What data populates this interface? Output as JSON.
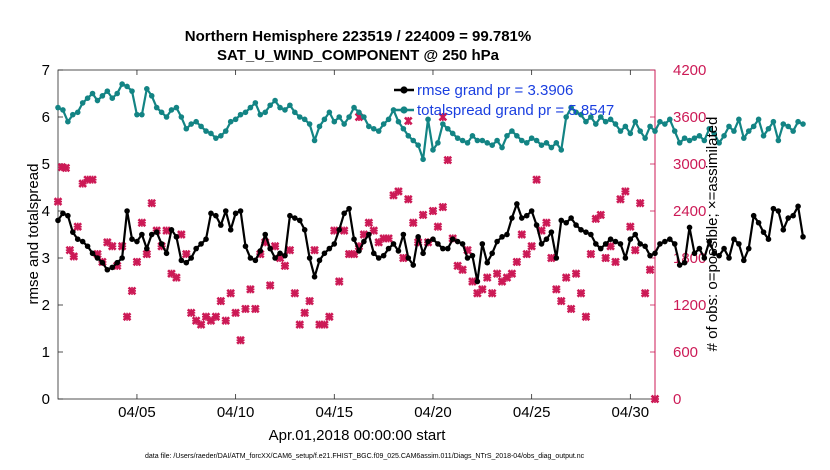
{
  "chart_data": {
    "type": "line",
    "title_line1": "Northern Hemisphere 223519 / 224009 = 99.781%",
    "title_line2": "SAT_U_WIND_COMPONENT @ 250 hPa",
    "xlabel": "Apr.01,2018 00:00:00 start",
    "ylabel_left": "rmse and totalspread",
    "ylabel_right": "# of obs: o=possible; ×=assimilated",
    "footer": "data file: /Users/raeder/DAI/ATM_forcXX/CAM6_setup/f.e21.FHIST_BGC.f09_025.CAM6assim.011/Diags_NTrS_2018-04/obs_diag_output.nc",
    "xlim": [
      1.0,
      31.25
    ],
    "x_ticks": [
      5,
      10,
      15,
      20,
      25,
      30
    ],
    "x_tick_labels": [
      "04/05",
      "04/10",
      "04/15",
      "04/20",
      "04/25",
      "04/30"
    ],
    "ylim_left": [
      0,
      7
    ],
    "y_ticks_left": [
      "0",
      "1",
      "2",
      "3",
      "4",
      "5",
      "6",
      "7"
    ],
    "ylim_right": [
      0,
      4200
    ],
    "y_ticks_right": [
      "0",
      "600",
      "1200",
      "1800",
      "2400",
      "3000",
      "3600",
      "4200"
    ],
    "colors": {
      "rmse": "#000000",
      "spread": "#138484",
      "obs": "#cc1a56"
    },
    "x_step_days": 0.25,
    "series": [
      {
        "name": "rmse grand pr = 3.3906",
        "values": [
          3.8,
          3.95,
          3.9,
          3.55,
          3.4,
          3.35,
          3.25,
          3.1,
          3.0,
          2.9,
          2.75,
          2.8,
          2.9,
          3.0,
          4.0,
          3.4,
          3.35,
          3.5,
          3.2,
          3.5,
          3.55,
          3.3,
          3.1,
          3.6,
          3.45,
          2.95,
          2.9,
          3.0,
          3.2,
          3.3,
          3.4,
          3.95,
          3.9,
          3.7,
          4.0,
          3.6,
          3.95,
          4.0,
          3.25,
          3.0,
          2.95,
          3.15,
          3.5,
          3.2,
          3.0,
          3.1,
          3.05,
          3.9,
          3.85,
          3.8,
          3.6,
          3.0,
          2.6,
          2.95,
          3.1,
          3.2,
          3.3,
          3.6,
          3.95,
          4.05,
          3.4,
          3.15,
          3.35,
          3.5,
          3.1,
          3.0,
          3.05,
          3.2,
          3.3,
          3.15,
          3.5,
          3.0,
          2.85,
          3.45,
          3.1,
          3.35,
          3.4,
          3.3,
          3.2,
          3.2,
          3.4,
          3.35,
          3.3,
          3.0,
          3.05,
          2.5,
          3.3,
          2.9,
          3.1,
          3.35,
          3.45,
          3.5,
          3.85,
          4.15,
          3.85,
          3.9,
          4.0,
          3.7,
          3.3,
          3.4,
          3.55,
          3.0,
          3.8,
          3.75,
          3.85,
          3.7,
          3.6,
          3.55,
          3.5,
          3.3,
          3.2,
          3.3,
          3.4,
          3.35,
          3.3,
          3.0,
          3.4,
          3.5,
          3.3,
          3.25,
          3.05,
          3.1,
          3.3,
          3.35,
          3.4,
          3.3,
          2.85,
          2.9,
          3.65,
          3.1,
          3.2,
          3.0,
          3.35,
          3.1,
          3.05,
          3.2,
          3.0,
          3.4,
          3.3,
          2.95,
          3.2,
          3.9,
          3.75,
          3.55,
          3.4,
          4.05,
          4.0,
          3.6,
          3.85,
          3.9,
          4.1,
          3.45
        ]
      },
      {
        "name": "totalspread grand pr = 5.8547",
        "values": [
          6.2,
          6.15,
          5.9,
          6.05,
          6.1,
          6.3,
          6.4,
          6.5,
          6.35,
          6.45,
          6.55,
          6.4,
          6.5,
          6.7,
          6.65,
          6.55,
          6.05,
          6.05,
          6.6,
          6.45,
          6.2,
          6.1,
          6.0,
          6.15,
          6.2,
          6.0,
          5.75,
          5.85,
          5.9,
          5.8,
          5.7,
          5.65,
          5.55,
          5.6,
          5.7,
          5.9,
          5.95,
          6.05,
          6.1,
          6.2,
          6.3,
          6.05,
          6.1,
          6.25,
          6.35,
          6.2,
          6.15,
          6.25,
          6.1,
          6.0,
          5.95,
          5.85,
          5.5,
          5.8,
          5.95,
          6.1,
          5.9,
          6.0,
          5.85,
          6.0,
          6.2,
          6.1,
          6.0,
          5.8,
          5.75,
          5.7,
          5.85,
          5.95,
          6.15,
          5.9,
          5.75,
          5.6,
          5.5,
          5.4,
          5.1,
          5.95,
          5.3,
          5.45,
          5.85,
          5.75,
          5.65,
          5.55,
          5.5,
          5.45,
          5.6,
          5.5,
          5.5,
          5.45,
          5.4,
          5.5,
          5.35,
          5.6,
          5.7,
          5.6,
          5.5,
          5.45,
          5.55,
          5.5,
          5.4,
          5.45,
          5.35,
          5.45,
          5.3,
          6.0,
          6.2,
          6.1,
          6.05,
          5.9,
          6.0,
          5.85,
          6.0,
          5.9,
          5.95,
          5.85,
          5.7,
          5.8,
          5.65,
          5.9,
          5.7,
          5.55,
          5.8,
          5.7,
          5.9,
          5.85,
          5.95,
          5.7,
          5.45,
          5.55,
          5.5,
          5.55,
          5.6,
          5.5,
          5.75,
          5.65,
          5.45,
          5.6,
          5.8,
          5.7,
          5.95,
          5.55,
          5.7,
          5.8,
          5.95,
          5.6,
          5.75,
          5.9,
          5.5,
          5.85,
          5.8,
          5.7,
          5.9,
          5.85
        ]
      }
    ],
    "obs_assimilated": [
      [
        1.0,
        2520
      ],
      [
        1.2,
        2960
      ],
      [
        1.4,
        2950
      ],
      [
        1.6,
        1900
      ],
      [
        1.8,
        1820
      ],
      [
        2.0,
        2200
      ],
      [
        2.25,
        2750
      ],
      [
        2.5,
        2800
      ],
      [
        2.75,
        2800
      ],
      [
        3.0,
        1850
      ],
      [
        3.25,
        1750
      ],
      [
        3.5,
        2000
      ],
      [
        3.75,
        1950
      ],
      [
        4.0,
        1700
      ],
      [
        4.25,
        1950
      ],
      [
        4.5,
        1050
      ],
      [
        4.75,
        1380
      ],
      [
        5.0,
        1750
      ],
      [
        5.25,
        2250
      ],
      [
        5.5,
        1850
      ],
      [
        5.75,
        2500
      ],
      [
        6.0,
        2150
      ],
      [
        6.25,
        1950
      ],
      [
        6.5,
        2150
      ],
      [
        6.75,
        1600
      ],
      [
        7.0,
        1550
      ],
      [
        7.25,
        2100
      ],
      [
        7.5,
        1850
      ],
      [
        7.75,
        1100
      ],
      [
        8.0,
        1000
      ],
      [
        8.25,
        950
      ],
      [
        8.5,
        1050
      ],
      [
        8.75,
        1000
      ],
      [
        9.0,
        1050
      ],
      [
        9.25,
        1250
      ],
      [
        9.5,
        1000
      ],
      [
        9.75,
        1350
      ],
      [
        10.0,
        1100
      ],
      [
        10.25,
        750
      ],
      [
        10.5,
        1150
      ],
      [
        10.75,
        1400
      ],
      [
        11.0,
        1150
      ],
      [
        11.25,
        1850
      ],
      [
        11.5,
        2000
      ],
      [
        11.75,
        1450
      ],
      [
        12.0,
        1950
      ],
      [
        12.25,
        1800
      ],
      [
        12.5,
        1700
      ],
      [
        12.75,
        1900
      ],
      [
        13.0,
        1350
      ],
      [
        13.25,
        950
      ],
      [
        13.5,
        1100
      ],
      [
        13.75,
        1250
      ],
      [
        14.0,
        1900
      ],
      [
        14.25,
        950
      ],
      [
        14.5,
        950
      ],
      [
        14.75,
        1050
      ],
      [
        15.0,
        2150
      ],
      [
        15.25,
        1500
      ],
      [
        15.5,
        2150
      ],
      [
        15.75,
        1850
      ],
      [
        16.0,
        1850
      ],
      [
        16.25,
        1950
      ],
      [
        16.5,
        2100
      ],
      [
        16.75,
        2250
      ],
      [
        17.0,
        2150
      ],
      [
        17.25,
        2000
      ],
      [
        17.5,
        2050
      ],
      [
        17.75,
        2050
      ],
      [
        18.0,
        2600
      ],
      [
        18.25,
        2650
      ],
      [
        18.5,
        1800
      ],
      [
        18.75,
        2550
      ],
      [
        19.0,
        2250
      ],
      [
        19.25,
        2000
      ],
      [
        19.5,
        2350
      ],
      [
        19.75,
        2000
      ],
      [
        20.0,
        2400
      ],
      [
        20.25,
        2200
      ],
      [
        20.5,
        2450
      ],
      [
        20.75,
        3050
      ],
      [
        21.0,
        2050
      ],
      [
        21.25,
        1700
      ],
      [
        21.5,
        1650
      ],
      [
        21.75,
        1900
      ],
      [
        22.0,
        1500
      ],
      [
        22.25,
        1350
      ],
      [
        22.5,
        1400
      ],
      [
        22.75,
        1550
      ],
      [
        23.0,
        1350
      ],
      [
        23.25,
        1600
      ],
      [
        23.5,
        1500
      ],
      [
        23.75,
        1550
      ],
      [
        24.0,
        1600
      ],
      [
        24.25,
        1750
      ],
      [
        24.5,
        2100
      ],
      [
        24.75,
        1850
      ],
      [
        25.0,
        1950
      ],
      [
        25.25,
        2800
      ],
      [
        25.5,
        2150
      ],
      [
        25.75,
        2250
      ],
      [
        26.0,
        1800
      ],
      [
        26.25,
        1400
      ],
      [
        26.5,
        1250
      ],
      [
        26.75,
        1550
      ],
      [
        27.0,
        1150
      ],
      [
        27.25,
        1600
      ],
      [
        27.5,
        1350
      ],
      [
        27.75,
        1050
      ],
      [
        28.0,
        1850
      ],
      [
        28.25,
        2300
      ],
      [
        28.5,
        2350
      ],
      [
        28.75,
        1800
      ],
      [
        29.0,
        1950
      ],
      [
        29.25,
        1750
      ],
      [
        29.5,
        2550
      ],
      [
        29.75,
        2650
      ],
      [
        30.0,
        2200
      ],
      [
        30.25,
        1900
      ],
      [
        30.5,
        2500
      ],
      [
        30.75,
        1350
      ],
      [
        31.0,
        1650
      ],
      [
        31.25,
        0
      ]
    ],
    "obs_possible": [
      [
        18.75,
        3550
      ],
      [
        20.5,
        3600
      ],
      [
        16.25,
        3600
      ]
    ]
  }
}
